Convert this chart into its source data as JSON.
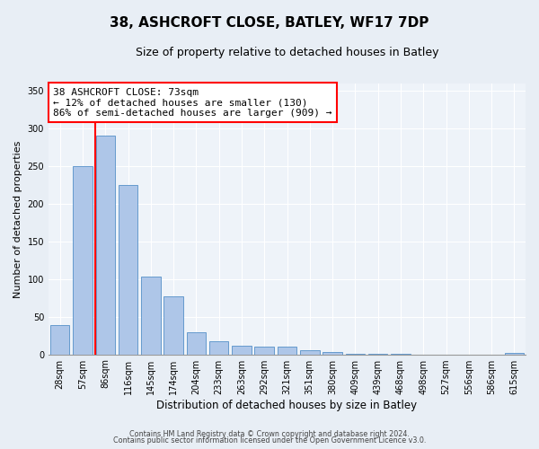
{
  "title": "38, ASHCROFT CLOSE, BATLEY, WF17 7DP",
  "subtitle": "Size of property relative to detached houses in Batley",
  "xlabel": "Distribution of detached houses by size in Batley",
  "ylabel": "Number of detached properties",
  "bar_labels": [
    "28sqm",
    "57sqm",
    "86sqm",
    "116sqm",
    "145sqm",
    "174sqm",
    "204sqm",
    "233sqm",
    "263sqm",
    "292sqm",
    "321sqm",
    "351sqm",
    "380sqm",
    "409sqm",
    "439sqm",
    "468sqm",
    "498sqm",
    "527sqm",
    "556sqm",
    "586sqm",
    "615sqm"
  ],
  "bar_values": [
    39,
    250,
    291,
    225,
    103,
    77,
    29,
    18,
    12,
    10,
    10,
    5,
    3,
    1,
    1,
    1,
    0,
    0,
    0,
    0,
    2
  ],
  "bar_color": "#aec6e8",
  "bar_edge_color": "#5590c8",
  "vline_color": "red",
  "vline_x": 1.55,
  "annotation_title": "38 ASHCROFT CLOSE: 73sqm",
  "annotation_line1": "← 12% of detached houses are smaller (130)",
  "annotation_line2": "86% of semi-detached houses are larger (909) →",
  "annotation_box_color": "white",
  "annotation_box_edge_color": "red",
  "ylim": [
    0,
    360
  ],
  "yticks": [
    0,
    50,
    100,
    150,
    200,
    250,
    300,
    350
  ],
  "footer1": "Contains HM Land Registry data © Crown copyright and database right 2024.",
  "footer2": "Contains public sector information licensed under the Open Government Licence v3.0.",
  "bg_color": "#e8eef5",
  "plot_bg_color": "#eef3f9",
  "title_fontsize": 11,
  "subtitle_fontsize": 9,
  "xlabel_fontsize": 8.5,
  "ylabel_fontsize": 8,
  "tick_fontsize": 7,
  "footer_fontsize": 5.8
}
